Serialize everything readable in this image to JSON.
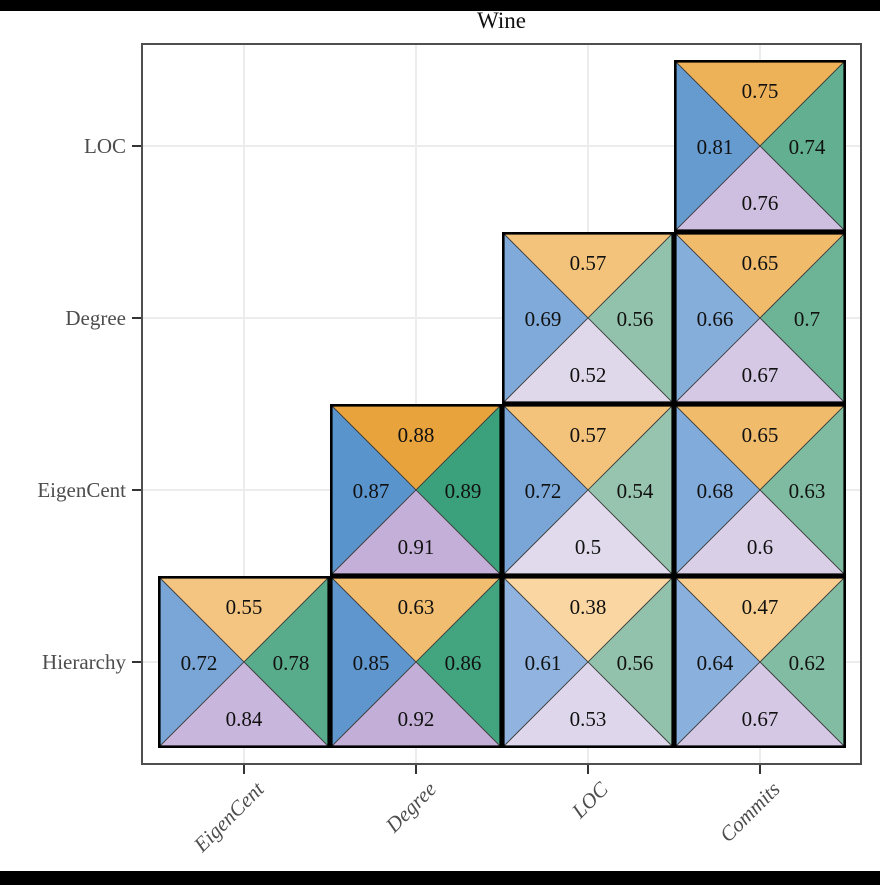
{
  "page": {
    "background": "#ffffff",
    "top_bar_color": "#000000",
    "bottom_bar_color": "#000000"
  },
  "chart_data": {
    "type": "heatmap",
    "variant": "divided-square-triangle-matrix",
    "title": "Wine",
    "x_categories": [
      "EigenCent",
      "Degree",
      "LOC",
      "Commits"
    ],
    "y_categories_top_to_bottom": [
      "LOC",
      "Degree",
      "EigenCent",
      "Hierarchy"
    ],
    "triangle_order": [
      "top",
      "left",
      "right",
      "bottom"
    ],
    "cells": [
      {
        "row": "LOC",
        "col": "Commits",
        "top": "0.75",
        "left": "0.81",
        "right": "0.74",
        "bottom": "0.76"
      },
      {
        "row": "Degree",
        "col": "LOC",
        "top": "0.57",
        "left": "0.69",
        "right": "0.56",
        "bottom": "0.52"
      },
      {
        "row": "Degree",
        "col": "Commits",
        "top": "0.65",
        "left": "0.66",
        "right": "0.7",
        "bottom": "0.67"
      },
      {
        "row": "EigenCent",
        "col": "Degree",
        "top": "0.88",
        "left": "0.87",
        "right": "0.89",
        "bottom": "0.91"
      },
      {
        "row": "EigenCent",
        "col": "LOC",
        "top": "0.57",
        "left": "0.72",
        "right": "0.54",
        "bottom": "0.5"
      },
      {
        "row": "EigenCent",
        "col": "Commits",
        "top": "0.65",
        "left": "0.68",
        "right": "0.63",
        "bottom": "0.6"
      },
      {
        "row": "Hierarchy",
        "col": "EigenCent",
        "top": "0.55",
        "left": "0.72",
        "right": "0.78",
        "bottom": "0.84"
      },
      {
        "row": "Hierarchy",
        "col": "Degree",
        "top": "0.63",
        "left": "0.85",
        "right": "0.86",
        "bottom": "0.92"
      },
      {
        "row": "Hierarchy",
        "col": "LOC",
        "top": "0.38",
        "left": "0.61",
        "right": "0.56",
        "bottom": "0.53"
      },
      {
        "row": "Hierarchy",
        "col": "Commits",
        "top": "0.47",
        "left": "0.64",
        "right": "0.62",
        "bottom": "0.67"
      }
    ],
    "color_ramps": {
      "top": {
        "v0": 0.38,
        "c0": "#FAD7A2",
        "v1": 0.88,
        "c1": "#E8A33D"
      },
      "left": {
        "v0": 0.61,
        "c0": "#90B4DF",
        "v1": 0.87,
        "c1": "#5A94CC"
      },
      "right": {
        "v0": 0.54,
        "c0": "#97C4AE",
        "v1": 0.89,
        "c1": "#3BA17C"
      },
      "bottom": {
        "v0": 0.5,
        "c0": "#E0DAEC",
        "v1": 0.92,
        "c1": "#C3AED8"
      }
    },
    "axis_text_color": "#4d4d4d",
    "gridline_color": "#ececec",
    "panel_border_color": "#4f4f4f",
    "cell_border_color": "#000000",
    "triangle_stroke_color": "#3a3a3a",
    "value_text_color": "#111111",
    "grid": true,
    "legend": false
  }
}
